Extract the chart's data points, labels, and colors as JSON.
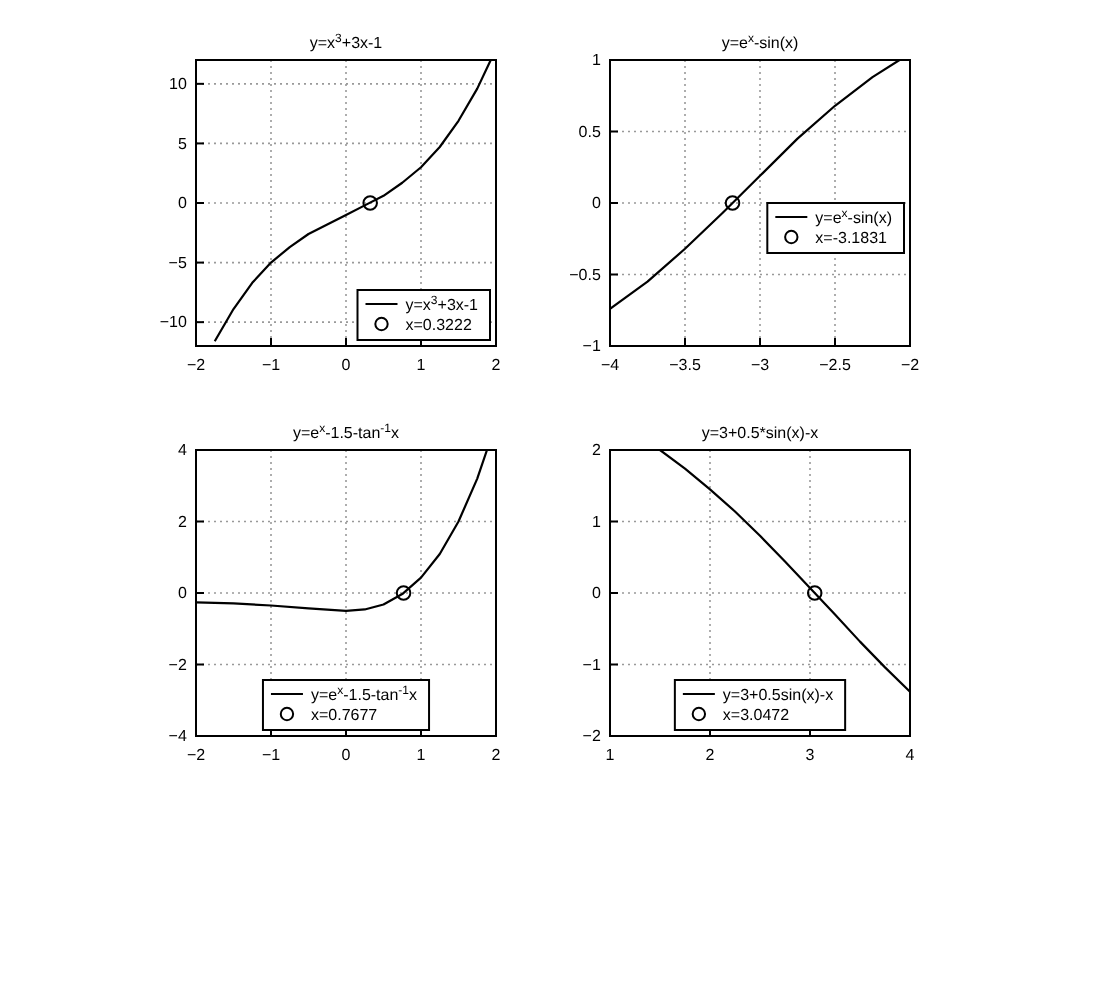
{
  "chart_data": [
    {
      "type": "line",
      "title": "y=x$^{3}$+3x-1",
      "xlim": [
        -2,
        2
      ],
      "xticks": [
        -2,
        -1,
        0,
        1,
        2
      ],
      "ylim": [
        -12,
        12
      ],
      "yticks": [
        -10,
        -5,
        0,
        5,
        10
      ],
      "grid": true,
      "legend": "bottom right",
      "series": [
        {
          "name": "y=x$^{3}$+3x-1",
          "type": "line",
          "color": "#000000",
          "x": [
            -1.75,
            -1.5,
            -1.25,
            -1,
            -0.75,
            -0.5,
            -0.25,
            0,
            0.25,
            0.5,
            0.75,
            1,
            1.25,
            1.5,
            1.75,
            1.93
          ],
          "values": [
            -11.6,
            -8.9,
            -6.7,
            -5,
            -3.7,
            -2.6,
            -1.8,
            -1,
            -0.2,
            0.6,
            1.7,
            3,
            4.7,
            6.9,
            9.6,
            12
          ]
        },
        {
          "name": "x=0.3222",
          "type": "scatter",
          "marker": "circle",
          "color": "#000000",
          "x": [
            0.3222
          ],
          "values": [
            0
          ]
        }
      ]
    },
    {
      "type": "line",
      "title": "y=e$^{x}$-sin(x)",
      "xlim": [
        -4,
        -2
      ],
      "xticks": [
        -4,
        -3.5,
        -3,
        -2.5,
        -2
      ],
      "ylim": [
        -1,
        1
      ],
      "yticks": [
        -1,
        -0.5,
        0,
        0.5,
        1
      ],
      "grid": true,
      "legend": "right",
      "series": [
        {
          "name": "y=e$^{x}$-sin(x)",
          "type": "line",
          "color": "#000000",
          "x": [
            -4,
            -3.75,
            -3.5,
            -3.25,
            -3,
            -2.75,
            -2.5,
            -2.25,
            -2.07
          ],
          "values": [
            -0.74,
            -0.55,
            -0.32,
            -0.07,
            0.19,
            0.45,
            0.68,
            0.88,
            1
          ]
        },
        {
          "name": "x=-3.1831",
          "type": "scatter",
          "marker": "circle",
          "color": "#000000",
          "x": [
            -3.1831
          ],
          "values": [
            0
          ]
        }
      ]
    },
    {
      "type": "line",
      "title": "y=e$^{x}$-1.5-tan$^{-1}$x",
      "xlim": [
        -2,
        2
      ],
      "xticks": [
        -2,
        -1,
        0,
        1,
        2
      ],
      "ylim": [
        -4,
        4
      ],
      "yticks": [
        -4,
        -2,
        0,
        2,
        4
      ],
      "grid": true,
      "legend": "bottom",
      "series": [
        {
          "name": "y=e$^{x}$-1.5-tan$^{-1}$x",
          "type": "line",
          "color": "#000000",
          "x": [
            -2,
            -1.5,
            -1,
            -0.5,
            0,
            0.25,
            0.5,
            0.75,
            1,
            1.25,
            1.5,
            1.75,
            1.88
          ],
          "values": [
            -0.26,
            -0.29,
            -0.35,
            -0.43,
            -0.5,
            -0.46,
            -0.32,
            -0.03,
            0.43,
            1.09,
            2,
            3.2,
            4
          ]
        },
        {
          "name": "x=0.7677",
          "type": "scatter",
          "marker": "circle",
          "color": "#000000",
          "x": [
            0.7677
          ],
          "values": [
            0
          ]
        }
      ]
    },
    {
      "type": "line",
      "title": "y=3+0.5*sin(x)-x",
      "xlim": [
        1,
        4
      ],
      "xticks": [
        1,
        2,
        3,
        4
      ],
      "ylim": [
        -2,
        2
      ],
      "yticks": [
        -2,
        -1,
        0,
        1,
        2
      ],
      "grid": true,
      "legend": "bottom",
      "series": [
        {
          "name": "y=3+0.5sin(x)-x",
          "type": "line",
          "color": "#000000",
          "x": [
            1.5,
            1.75,
            2,
            2.25,
            2.5,
            2.75,
            3,
            3.25,
            3.5,
            3.75,
            4
          ],
          "values": [
            2,
            1.74,
            1.45,
            1.14,
            0.8,
            0.44,
            0.07,
            -0.3,
            -0.68,
            -1.04,
            -1.38
          ]
        },
        {
          "name": "x=3.0472",
          "type": "scatter",
          "marker": "circle",
          "color": "#000000",
          "x": [
            3.0472
          ],
          "values": [
            0
          ]
        }
      ]
    }
  ]
}
